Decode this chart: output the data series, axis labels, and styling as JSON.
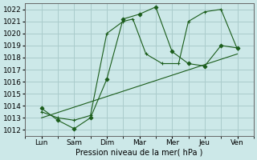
{
  "xlabel": "Pression niveau de la mer( hPa )",
  "bg_color": "#cce8e8",
  "grid_color": "#aacccc",
  "line_color": "#1a5c1a",
  "xlim": [
    0,
    7
  ],
  "ylim": [
    1011.5,
    1022.5
  ],
  "yticks": [
    1012,
    1013,
    1014,
    1015,
    1016,
    1017,
    1018,
    1019,
    1020,
    1021,
    1022
  ],
  "xtick_positions": [
    0.5,
    1.5,
    2.5,
    3.5,
    4.5,
    5.5,
    6.5
  ],
  "xtick_labels": [
    "Lun",
    "Sam",
    "Dim",
    "Mar",
    "Mer",
    "Jeu",
    "Ven"
  ],
  "series1_x": [
    0.5,
    1.0,
    1.5,
    2.0,
    2.5,
    3.0,
    3.5,
    4.0,
    4.5,
    5.0,
    5.5,
    6.0,
    6.5
  ],
  "series1_y": [
    1013.8,
    1012.8,
    1012.1,
    1013.0,
    1016.2,
    1021.2,
    1021.6,
    1022.2,
    1018.5,
    1017.5,
    1017.3,
    1019.0,
    1018.8
  ],
  "series2_x": [
    0.5,
    1.0,
    1.5,
    2.0,
    2.5,
    3.0,
    3.3,
    3.7,
    4.2,
    4.7,
    5.0,
    5.5,
    6.0,
    6.5
  ],
  "series2_y": [
    1013.5,
    1013.0,
    1012.8,
    1013.2,
    1020.0,
    1021.0,
    1021.2,
    1018.3,
    1017.5,
    1017.5,
    1021.0,
    1021.8,
    1022.0,
    1018.7
  ],
  "series3_x": [
    0.5,
    6.5
  ],
  "series3_y": [
    1013.0,
    1018.3
  ]
}
